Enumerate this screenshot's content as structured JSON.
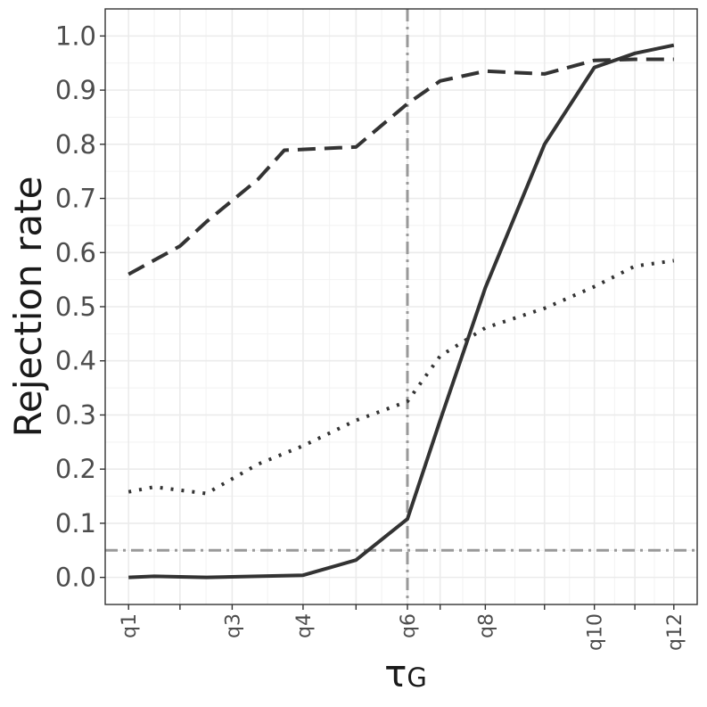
{
  "chart_data": {
    "type": "line",
    "title": "",
    "ylabel": "Rejection rate",
    "xlabel_symbol": "τ",
    "xlabel_subscript": "G",
    "ylim": [
      -0.05,
      1.05
    ],
    "xlim": [
      0.7,
      12.3
    ],
    "y_ticks": [
      0.0,
      0.1,
      0.2,
      0.3,
      0.4,
      0.5,
      0.6,
      0.7,
      0.8,
      0.9,
      1.0
    ],
    "y_tick_labels": [
      "0.0",
      "0.1",
      "0.2",
      "0.3",
      "0.4",
      "0.5",
      "0.6",
      "0.7",
      "0.8",
      "0.9",
      "1.0"
    ],
    "x_ticks": [
      1,
      2,
      3,
      4,
      5,
      6,
      7,
      8,
      9,
      10,
      11,
      12
    ],
    "x_tick_labels": [
      "q1",
      "",
      "q3",
      "q4",
      "",
      "q6",
      "",
      "q8",
      "",
      "q10",
      "",
      "q12"
    ],
    "x_positions": [
      1.0,
      1.66,
      2.33,
      3.24,
      3.92,
      4.58,
      5.0,
      5.58,
      6.34,
      6.98,
      7.5,
      8.0
    ],
    "grid": true,
    "reference_lines": {
      "horizontal_y": 0.05,
      "vertical_x": 4.58,
      "color": "#999999",
      "style": "dashdot"
    },
    "series": [
      {
        "style": "solid",
        "color": "#333333",
        "points": [
          [
            1.0,
            0.0
          ],
          [
            1.33,
            0.002
          ],
          [
            2.0,
            0.0
          ],
          [
            3.24,
            0.004
          ],
          [
            3.92,
            0.032
          ],
          [
            4.58,
            0.108
          ],
          [
            5.0,
            0.29
          ],
          [
            5.58,
            0.535
          ],
          [
            6.34,
            0.8
          ],
          [
            6.98,
            0.942
          ],
          [
            7.5,
            0.968
          ],
          [
            8.0,
            0.983
          ]
        ]
      },
      {
        "style": "dashed",
        "color": "#333333",
        "points": [
          [
            1.0,
            0.56
          ],
          [
            1.66,
            0.612
          ],
          [
            2.0,
            0.657
          ],
          [
            2.66,
            0.735
          ],
          [
            3.0,
            0.789
          ],
          [
            3.92,
            0.795
          ],
          [
            4.58,
            0.875
          ],
          [
            5.0,
            0.917
          ],
          [
            5.58,
            0.935
          ],
          [
            6.34,
            0.93
          ],
          [
            6.98,
            0.955
          ],
          [
            7.5,
            0.957
          ],
          [
            8.0,
            0.957
          ]
        ]
      },
      {
        "style": "dotted",
        "color": "#333333",
        "points": [
          [
            1.0,
            0.158
          ],
          [
            1.33,
            0.167
          ],
          [
            2.0,
            0.155
          ],
          [
            2.66,
            0.209
          ],
          [
            3.24,
            0.243
          ],
          [
            3.92,
            0.29
          ],
          [
            4.58,
            0.325
          ],
          [
            5.0,
            0.409
          ],
          [
            5.58,
            0.461
          ],
          [
            6.34,
            0.497
          ],
          [
            6.98,
            0.537
          ],
          [
            7.5,
            0.575
          ],
          [
            8.0,
            0.585
          ]
        ]
      }
    ]
  }
}
